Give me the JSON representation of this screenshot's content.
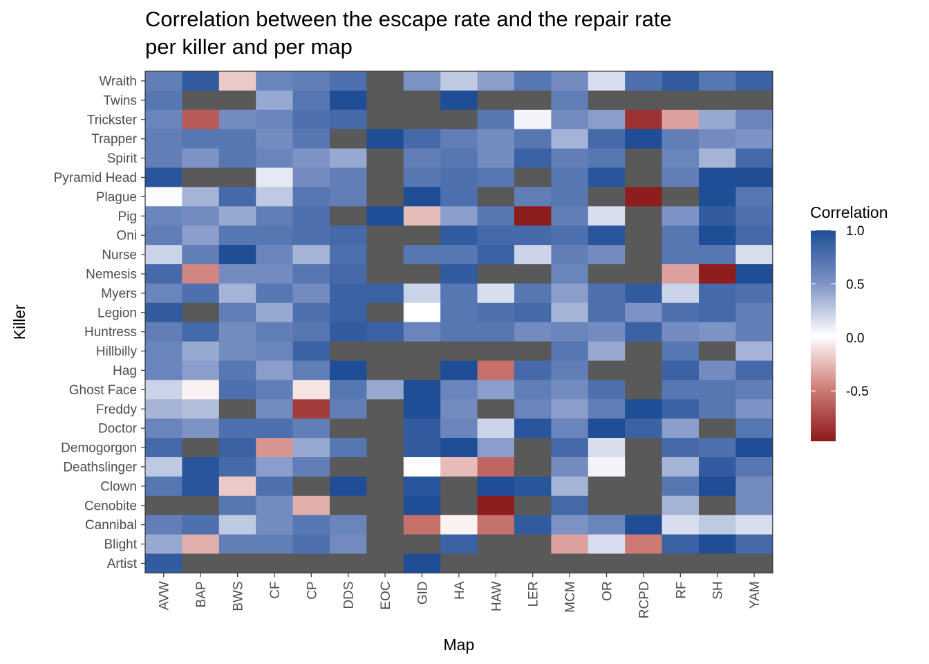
{
  "chart_data": {
    "type": "heatmap",
    "title": "Correlation between the escape rate and the repair rate per killer and per map",
    "title_lines": [
      "Correlation between the escape rate and the repair rate",
      "per killer and per map"
    ],
    "xlabel": "Map",
    "ylabel": "Killer",
    "x": [
      "AVW",
      "BAP",
      "BWS",
      "CF",
      "CP",
      "DDS",
      "EOC",
      "GID",
      "HA",
      "HAW",
      "LER",
      "MCM",
      "OR",
      "RCPD",
      "RF",
      "SH",
      "YAM"
    ],
    "y": [
      "Wraith",
      "Twins",
      "Trickster",
      "Trapper",
      "Spirit",
      "Pyramid Head",
      "Plague",
      "Pig",
      "Oni",
      "Nurse",
      "Nemesis",
      "Myers",
      "Legion",
      "Huntress",
      "Hillbilly",
      "Hag",
      "Ghost Face",
      "Freddy",
      "Doctor",
      "Demogorgon",
      "Deathslinger",
      "Clown",
      "Cenobite",
      "Cannibal",
      "Blight",
      "Artist"
    ],
    "values": [
      [
        0.65,
        0.9,
        -0.2,
        0.6,
        0.65,
        0.75,
        null,
        0.5,
        0.25,
        0.45,
        0.7,
        0.55,
        0.15,
        0.75,
        0.9,
        0.7,
        0.85
      ],
      [
        0.7,
        null,
        null,
        0.4,
        0.7,
        1.0,
        null,
        null,
        1.0,
        null,
        null,
        0.65,
        null,
        null,
        null,
        null,
        null
      ],
      [
        0.6,
        -0.65,
        0.55,
        0.6,
        0.75,
        0.8,
        null,
        null,
        null,
        0.7,
        0.05,
        0.55,
        0.45,
        -0.85,
        -0.35,
        0.4,
        0.6
      ],
      [
        0.65,
        0.7,
        0.7,
        0.55,
        0.7,
        null,
        1.0,
        0.8,
        0.65,
        0.55,
        0.7,
        0.35,
        0.8,
        1.0,
        0.65,
        0.55,
        0.5
      ],
      [
        0.65,
        0.5,
        0.7,
        0.6,
        0.5,
        0.4,
        null,
        0.65,
        0.7,
        0.55,
        0.85,
        0.65,
        0.7,
        null,
        0.6,
        0.35,
        0.8
      ],
      [
        0.95,
        null,
        null,
        0.1,
        0.55,
        0.65,
        null,
        0.7,
        0.75,
        0.7,
        null,
        0.7,
        0.95,
        null,
        0.65,
        1.0,
        1.0
      ],
      [
        0.02,
        0.35,
        0.8,
        0.25,
        0.7,
        0.65,
        null,
        1.0,
        0.75,
        null,
        0.65,
        0.7,
        null,
        -0.95,
        null,
        1.0,
        0.7
      ],
      [
        0.6,
        0.55,
        0.4,
        0.65,
        0.75,
        null,
        1.0,
        -0.25,
        0.45,
        0.7,
        -0.95,
        0.65,
        0.15,
        null,
        0.5,
        0.9,
        0.75
      ],
      [
        0.65,
        0.45,
        0.7,
        0.7,
        0.75,
        0.8,
        null,
        null,
        0.9,
        0.8,
        0.8,
        0.75,
        0.95,
        null,
        0.7,
        1.0,
        0.8
      ],
      [
        0.2,
        0.65,
        1.0,
        0.6,
        0.35,
        0.75,
        null,
        0.7,
        0.7,
        0.85,
        0.2,
        0.65,
        0.55,
        null,
        0.7,
        0.7,
        0.15
      ],
      [
        0.8,
        -0.45,
        0.55,
        0.55,
        0.7,
        0.8,
        null,
        null,
        0.9,
        null,
        null,
        0.6,
        null,
        null,
        -0.35,
        -0.95,
        1.0
      ],
      [
        0.6,
        0.75,
        0.35,
        0.7,
        0.55,
        0.85,
        0.85,
        0.2,
        0.7,
        0.15,
        0.7,
        0.45,
        0.75,
        0.9,
        0.2,
        0.8,
        0.75
      ],
      [
        0.9,
        null,
        0.65,
        0.4,
        0.75,
        0.85,
        null,
        0.0,
        0.7,
        0.75,
        0.8,
        0.35,
        0.75,
        0.5,
        0.75,
        0.8,
        0.65
      ],
      [
        0.65,
        0.8,
        0.55,
        0.65,
        0.7,
        0.9,
        0.85,
        0.6,
        0.7,
        0.7,
        0.55,
        0.6,
        0.55,
        0.85,
        0.55,
        0.5,
        0.65
      ],
      [
        0.6,
        0.4,
        0.55,
        0.6,
        0.85,
        null,
        null,
        null,
        null,
        null,
        null,
        0.7,
        0.4,
        null,
        0.7,
        null,
        0.35
      ],
      [
        0.6,
        0.45,
        0.7,
        0.45,
        0.65,
        1.0,
        null,
        null,
        1.0,
        -0.55,
        0.8,
        0.65,
        null,
        null,
        0.85,
        0.55,
        0.8
      ],
      [
        0.2,
        -0.05,
        0.75,
        0.65,
        -0.1,
        0.7,
        0.4,
        1.0,
        0.6,
        0.45,
        0.65,
        0.55,
        0.75,
        null,
        0.7,
        0.7,
        0.65
      ],
      [
        0.35,
        0.3,
        null,
        0.55,
        -0.8,
        0.65,
        null,
        1.0,
        0.55,
        null,
        0.6,
        0.45,
        0.65,
        1.0,
        0.85,
        0.7,
        0.5
      ],
      [
        0.6,
        0.5,
        0.75,
        0.75,
        0.65,
        null,
        null,
        0.9,
        0.6,
        0.2,
        0.95,
        0.6,
        1.0,
        0.85,
        0.45,
        null,
        0.7
      ],
      [
        0.8,
        null,
        0.85,
        -0.4,
        0.4,
        0.7,
        null,
        0.9,
        1.0,
        0.45,
        null,
        0.8,
        0.15,
        null,
        0.8,
        0.75,
        1.0
      ],
      [
        0.25,
        0.95,
        0.8,
        0.45,
        0.65,
        null,
        null,
        0.0,
        -0.25,
        -0.6,
        null,
        0.55,
        0.05,
        null,
        0.35,
        0.9,
        0.7
      ],
      [
        0.7,
        0.95,
        -0.2,
        0.75,
        null,
        1.0,
        null,
        0.95,
        null,
        1.0,
        0.95,
        0.35,
        null,
        null,
        0.7,
        1.0,
        0.55
      ],
      [
        null,
        null,
        0.7,
        0.55,
        -0.3,
        null,
        null,
        1.0,
        null,
        -0.95,
        null,
        0.8,
        null,
        null,
        0.35,
        null,
        0.55
      ],
      [
        0.65,
        0.75,
        0.25,
        0.55,
        0.7,
        0.6,
        null,
        -0.55,
        -0.05,
        -0.55,
        0.9,
        0.5,
        0.6,
        1.0,
        0.15,
        0.25,
        0.15
      ],
      [
        0.4,
        -0.3,
        0.65,
        0.65,
        0.75,
        0.55,
        null,
        null,
        0.85,
        null,
        null,
        -0.35,
        0.15,
        -0.5,
        0.85,
        1.0,
        0.8
      ],
      [
        0.9,
        null,
        null,
        null,
        null,
        null,
        null,
        1.0,
        null,
        null,
        null,
        null,
        null,
        null,
        null,
        null,
        null
      ]
    ],
    "color_scale": {
      "low": "#8b1a1a",
      "mid": "#ffffff",
      "high": "#1f4e96",
      "na": "#595959",
      "limits": [
        -0.97,
        1.0
      ]
    },
    "legend": {
      "title": "Correlation",
      "position": "right",
      "breaks": [
        1.0,
        0.5,
        0.0,
        -0.5
      ],
      "labels": [
        "1.0",
        "0.5",
        "0.0",
        "-0.5"
      ]
    }
  }
}
